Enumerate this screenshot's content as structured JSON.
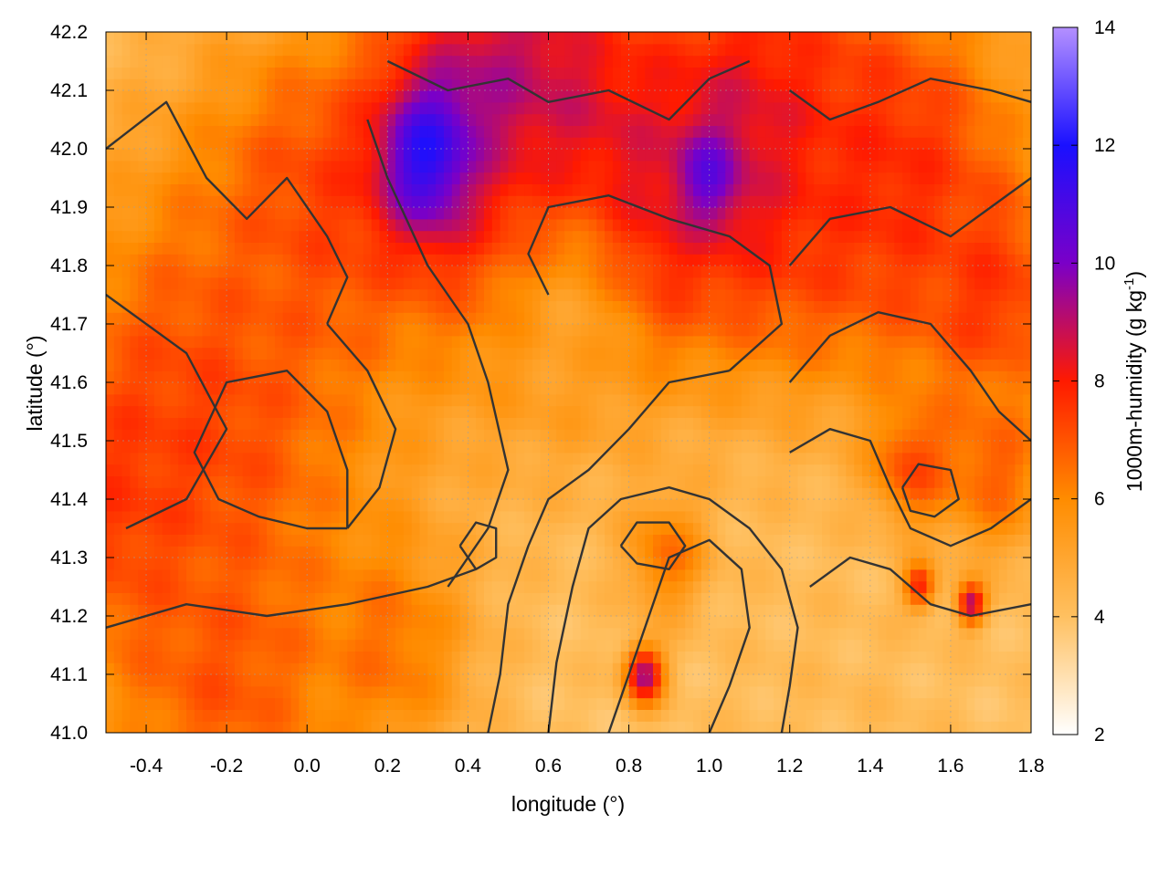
{
  "chart_data": {
    "type": "heatmap",
    "title": "",
    "xlabel": "longitude (°)",
    "ylabel": "latitude (°)",
    "colorbar_label": "1000m-humidity (g kg",
    "colorbar_label_sup": "-1",
    "colorbar_label_end": ")",
    "xlim": [
      -0.5,
      1.8
    ],
    "ylim": [
      41.0,
      42.2
    ],
    "x_ticks": [
      "-0.4",
      "-0.2",
      "0.0",
      "0.2",
      "0.4",
      "0.6",
      "0.8",
      "1.0",
      "1.2",
      "1.4",
      "1.6",
      "1.8"
    ],
    "x_tick_values": [
      -0.4,
      -0.2,
      0.0,
      0.2,
      0.4,
      0.6,
      0.8,
      1.0,
      1.2,
      1.4,
      1.6,
      1.8
    ],
    "y_ticks": [
      "41.0",
      "41.1",
      "41.2",
      "41.3",
      "41.4",
      "41.5",
      "41.6",
      "41.7",
      "41.8",
      "41.9",
      "42.0",
      "42.1",
      "42.2"
    ],
    "y_tick_values": [
      41.0,
      41.1,
      41.2,
      41.3,
      41.4,
      41.5,
      41.6,
      41.7,
      41.8,
      41.9,
      42.0,
      42.1,
      42.2
    ],
    "colorbar_ticks": [
      "2",
      "4",
      "6",
      "8",
      "10",
      "12",
      "14"
    ],
    "colorbar_range": [
      2,
      14
    ],
    "colorbar_values": [
      2,
      4,
      6,
      8,
      10,
      12,
      14
    ],
    "colormap": [
      {
        "value": 2,
        "color": "#ffffff"
      },
      {
        "value": 4,
        "color": "#ffc060"
      },
      {
        "value": 6,
        "color": "#ff8c00"
      },
      {
        "value": 8,
        "color": "#ff1a00"
      },
      {
        "value": 10,
        "color": "#7a00c8"
      },
      {
        "value": 12,
        "color": "#1a10ff"
      },
      {
        "value": 14,
        "color": "#b490ff"
      }
    ],
    "grid": true,
    "contour_color": "#333333",
    "field_blobs": [
      {
        "lon": -0.25,
        "lat": 41.55,
        "value": 7.2,
        "spread": 0.45
      },
      {
        "lon": 0.0,
        "lat": 41.9,
        "value": 7.0,
        "spread": 0.3
      },
      {
        "lon": -0.45,
        "lat": 41.4,
        "value": 7.6,
        "spread": 0.25
      },
      {
        "lon": -0.2,
        "lat": 41.1,
        "value": 7.0,
        "spread": 0.3
      },
      {
        "lon": 0.2,
        "lat": 41.15,
        "value": 6.5,
        "spread": 0.2
      },
      {
        "lon": 0.5,
        "lat": 42.05,
        "value": 9.5,
        "spread": 0.35
      },
      {
        "lon": 0.32,
        "lat": 41.98,
        "value": 13.0,
        "spread": 0.12
      },
      {
        "lon": 0.8,
        "lat": 41.85,
        "value": 10.5,
        "spread": 0.18
      },
      {
        "lon": 0.6,
        "lat": 41.92,
        "value": 9.0,
        "spread": 0.25
      },
      {
        "lon": 1.1,
        "lat": 42.0,
        "value": 9.0,
        "spread": 0.35
      },
      {
        "lon": 1.0,
        "lat": 41.95,
        "value": 11.5,
        "spread": 0.08
      },
      {
        "lon": 1.45,
        "lat": 41.95,
        "value": 7.8,
        "spread": 0.35
      },
      {
        "lon": 1.7,
        "lat": 41.75,
        "value": 7.6,
        "spread": 0.2
      },
      {
        "lon": 1.7,
        "lat": 41.45,
        "value": 7.0,
        "spread": 0.15
      },
      {
        "lon": 0.65,
        "lat": 41.68,
        "value": 5.2,
        "spread": 0.25
      },
      {
        "lon": 1.52,
        "lat": 41.25,
        "value": 11.5,
        "spread": 0.04
      },
      {
        "lon": 1.65,
        "lat": 41.22,
        "value": 11.0,
        "spread": 0.035
      },
      {
        "lon": 0.84,
        "lat": 41.1,
        "value": 10.5,
        "spread": 0.05
      },
      {
        "lon": 0.9,
        "lat": 41.3,
        "value": 7.0,
        "spread": 0.1
      },
      {
        "lon": 1.5,
        "lat": 41.45,
        "value": 8.0,
        "spread": 0.1
      },
      {
        "lon": 1.3,
        "lat": 41.05,
        "value": 4.2,
        "spread": 0.35
      }
    ],
    "contours": [
      [
        [
          -0.5,
          42.0
        ],
        [
          -0.35,
          42.08
        ],
        [
          -0.25,
          41.95
        ],
        [
          -0.15,
          41.88
        ],
        [
          -0.05,
          41.95
        ],
        [
          0.05,
          41.85
        ],
        [
          0.1,
          41.78
        ],
        [
          0.05,
          41.7
        ]
      ],
      [
        [
          0.05,
          41.7
        ],
        [
          0.15,
          41.62
        ],
        [
          0.22,
          41.52
        ],
        [
          0.18,
          41.42
        ],
        [
          0.1,
          41.35
        ]
      ],
      [
        [
          -0.5,
          41.75
        ],
        [
          -0.3,
          41.65
        ],
        [
          -0.2,
          41.52
        ],
        [
          -0.3,
          41.4
        ],
        [
          -0.45,
          41.35
        ]
      ],
      [
        [
          0.1,
          41.35
        ],
        [
          0.0,
          41.35
        ],
        [
          -0.12,
          41.37
        ],
        [
          -0.22,
          41.4
        ],
        [
          -0.28,
          41.48
        ],
        [
          -0.2,
          41.6
        ],
        [
          -0.05,
          41.62
        ],
        [
          0.05,
          41.55
        ],
        [
          0.1,
          41.45
        ],
        [
          0.1,
          41.35
        ]
      ],
      [
        [
          -0.5,
          41.18
        ],
        [
          -0.3,
          41.22
        ],
        [
          -0.1,
          41.2
        ],
        [
          0.1,
          41.22
        ],
        [
          0.3,
          41.25
        ],
        [
          0.42,
          41.28
        ]
      ],
      [
        [
          0.35,
          41.25
        ],
        [
          0.45,
          41.35
        ],
        [
          0.5,
          41.45
        ],
        [
          0.45,
          41.6
        ],
        [
          0.4,
          41.7
        ],
        [
          0.3,
          41.8
        ],
        [
          0.2,
          41.95
        ],
        [
          0.15,
          42.05
        ]
      ],
      [
        [
          0.6,
          41.75
        ],
        [
          0.55,
          41.82
        ],
        [
          0.6,
          41.9
        ],
        [
          0.75,
          41.92
        ],
        [
          0.9,
          41.88
        ],
        [
          1.05,
          41.85
        ],
        [
          1.15,
          41.8
        ],
        [
          1.18,
          41.7
        ],
        [
          1.05,
          41.62
        ]
      ],
      [
        [
          1.05,
          41.62
        ],
        [
          0.9,
          41.6
        ],
        [
          0.8,
          41.52
        ],
        [
          0.7,
          41.45
        ],
        [
          0.6,
          41.4
        ],
        [
          0.55,
          41.32
        ],
        [
          0.5,
          41.22
        ],
        [
          0.48,
          41.1
        ],
        [
          0.45,
          41.0
        ]
      ],
      [
        [
          0.6,
          41.0
        ],
        [
          0.62,
          41.12
        ],
        [
          0.66,
          41.25
        ],
        [
          0.7,
          41.35
        ],
        [
          0.78,
          41.4
        ],
        [
          0.9,
          41.42
        ],
        [
          1.0,
          41.4
        ],
        [
          1.1,
          41.35
        ],
        [
          1.18,
          41.28
        ],
        [
          1.22,
          41.18
        ],
        [
          1.2,
          41.08
        ],
        [
          1.18,
          41.0
        ]
      ],
      [
        [
          0.75,
          41.0
        ],
        [
          0.8,
          41.1
        ],
        [
          0.85,
          41.2
        ],
        [
          0.9,
          41.3
        ],
        [
          1.0,
          41.33
        ],
        [
          1.08,
          41.28
        ],
        [
          1.1,
          41.18
        ],
        [
          1.05,
          41.08
        ],
        [
          1.0,
          41.0
        ]
      ],
      [
        [
          1.2,
          41.48
        ],
        [
          1.3,
          41.52
        ],
        [
          1.4,
          41.5
        ],
        [
          1.45,
          41.42
        ],
        [
          1.5,
          41.35
        ],
        [
          1.6,
          41.32
        ],
        [
          1.7,
          41.35
        ],
        [
          1.8,
          41.4
        ]
      ],
      [
        [
          1.25,
          41.25
        ],
        [
          1.35,
          41.3
        ],
        [
          1.45,
          41.28
        ],
        [
          1.55,
          41.22
        ],
        [
          1.65,
          41.2
        ],
        [
          1.8,
          41.22
        ]
      ],
      [
        [
          1.2,
          41.6
        ],
        [
          1.3,
          41.68
        ],
        [
          1.42,
          41.72
        ],
        [
          1.55,
          41.7
        ],
        [
          1.65,
          41.62
        ],
        [
          1.72,
          41.55
        ],
        [
          1.8,
          41.5
        ]
      ],
      [
        [
          1.2,
          41.8
        ],
        [
          1.3,
          41.88
        ],
        [
          1.45,
          41.9
        ],
        [
          1.6,
          41.85
        ],
        [
          1.7,
          41.9
        ],
        [
          1.8,
          41.95
        ]
      ],
      [
        [
          0.2,
          42.15
        ],
        [
          0.35,
          42.1
        ],
        [
          0.5,
          42.12
        ],
        [
          0.6,
          42.08
        ],
        [
          0.75,
          42.1
        ],
        [
          0.9,
          42.05
        ],
        [
          1.0,
          42.12
        ],
        [
          1.1,
          42.15
        ]
      ],
      [
        [
          1.2,
          42.1
        ],
        [
          1.3,
          42.05
        ],
        [
          1.42,
          42.08
        ],
        [
          1.55,
          42.12
        ],
        [
          1.7,
          42.1
        ],
        [
          1.8,
          42.08
        ]
      ],
      [
        [
          0.78,
          41.32
        ],
        [
          0.82,
          41.36
        ],
        [
          0.9,
          41.36
        ],
        [
          0.94,
          41.32
        ],
        [
          0.9,
          41.28
        ],
        [
          0.82,
          41.29
        ],
        [
          0.78,
          41.32
        ]
      ],
      [
        [
          1.48,
          41.42
        ],
        [
          1.52,
          41.46
        ],
        [
          1.6,
          41.45
        ],
        [
          1.62,
          41.4
        ],
        [
          1.56,
          41.37
        ],
        [
          1.5,
          41.38
        ],
        [
          1.48,
          41.42
        ]
      ],
      [
        [
          0.38,
          41.32
        ],
        [
          0.42,
          41.36
        ],
        [
          0.47,
          41.35
        ],
        [
          0.47,
          41.3
        ],
        [
          0.42,
          41.28
        ],
        [
          0.38,
          41.32
        ]
      ]
    ]
  }
}
